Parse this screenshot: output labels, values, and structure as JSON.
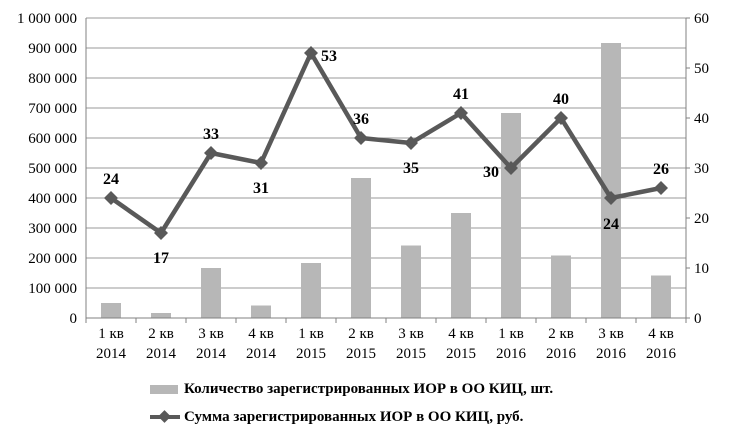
{
  "chart_data": {
    "type": "bar+line",
    "categories": [
      [
        "1 кв",
        "2014"
      ],
      [
        "2 кв",
        "2014"
      ],
      [
        "3 кв",
        "2014"
      ],
      [
        "4 кв",
        "2014"
      ],
      [
        "1 кв",
        "2015"
      ],
      [
        "2 кв",
        "2015"
      ],
      [
        "3 кв",
        "2015"
      ],
      [
        "4 кв",
        "2015"
      ],
      [
        "1 кв",
        "2016"
      ],
      [
        "2 кв",
        "2016"
      ],
      [
        "3 кв",
        "2016"
      ],
      [
        "4 кв",
        "2016"
      ]
    ],
    "left_axis": {
      "ylim": [
        0,
        1000000
      ],
      "ticks": [
        "0",
        "100 000",
        "200 000",
        "300 000",
        "400 000",
        "500 000",
        "600 000",
        "700 000",
        "800 000",
        "900 000",
        "1 000 000"
      ]
    },
    "right_axis": {
      "ylim": [
        0,
        60
      ],
      "ticks": [
        "0",
        "10",
        "20",
        "30",
        "40",
        "50",
        "60"
      ]
    },
    "grid": true,
    "legend_position": "bottom",
    "series": [
      {
        "name": "Количество зарегистрированных ИОР в ОО КИЦ, шт.",
        "kind": "bar",
        "axis": "right",
        "color": "#b7b7b7",
        "values": [
          3,
          1,
          10,
          2.5,
          11,
          28,
          14.5,
          21,
          41,
          12.5,
          55,
          8.5
        ]
      },
      {
        "name": "Сумма зарегистрированных ИОР в ОО КИЦ, руб.",
        "kind": "line",
        "axis": "right",
        "color": "#595959",
        "values": [
          24,
          17,
          33,
          31,
          53,
          36,
          35,
          41,
          30,
          40,
          24,
          26
        ],
        "labels": [
          "24",
          "17",
          "33",
          "31",
          "53",
          "36",
          "35",
          "41",
          "30",
          "40",
          "24",
          "26"
        ]
      }
    ]
  }
}
